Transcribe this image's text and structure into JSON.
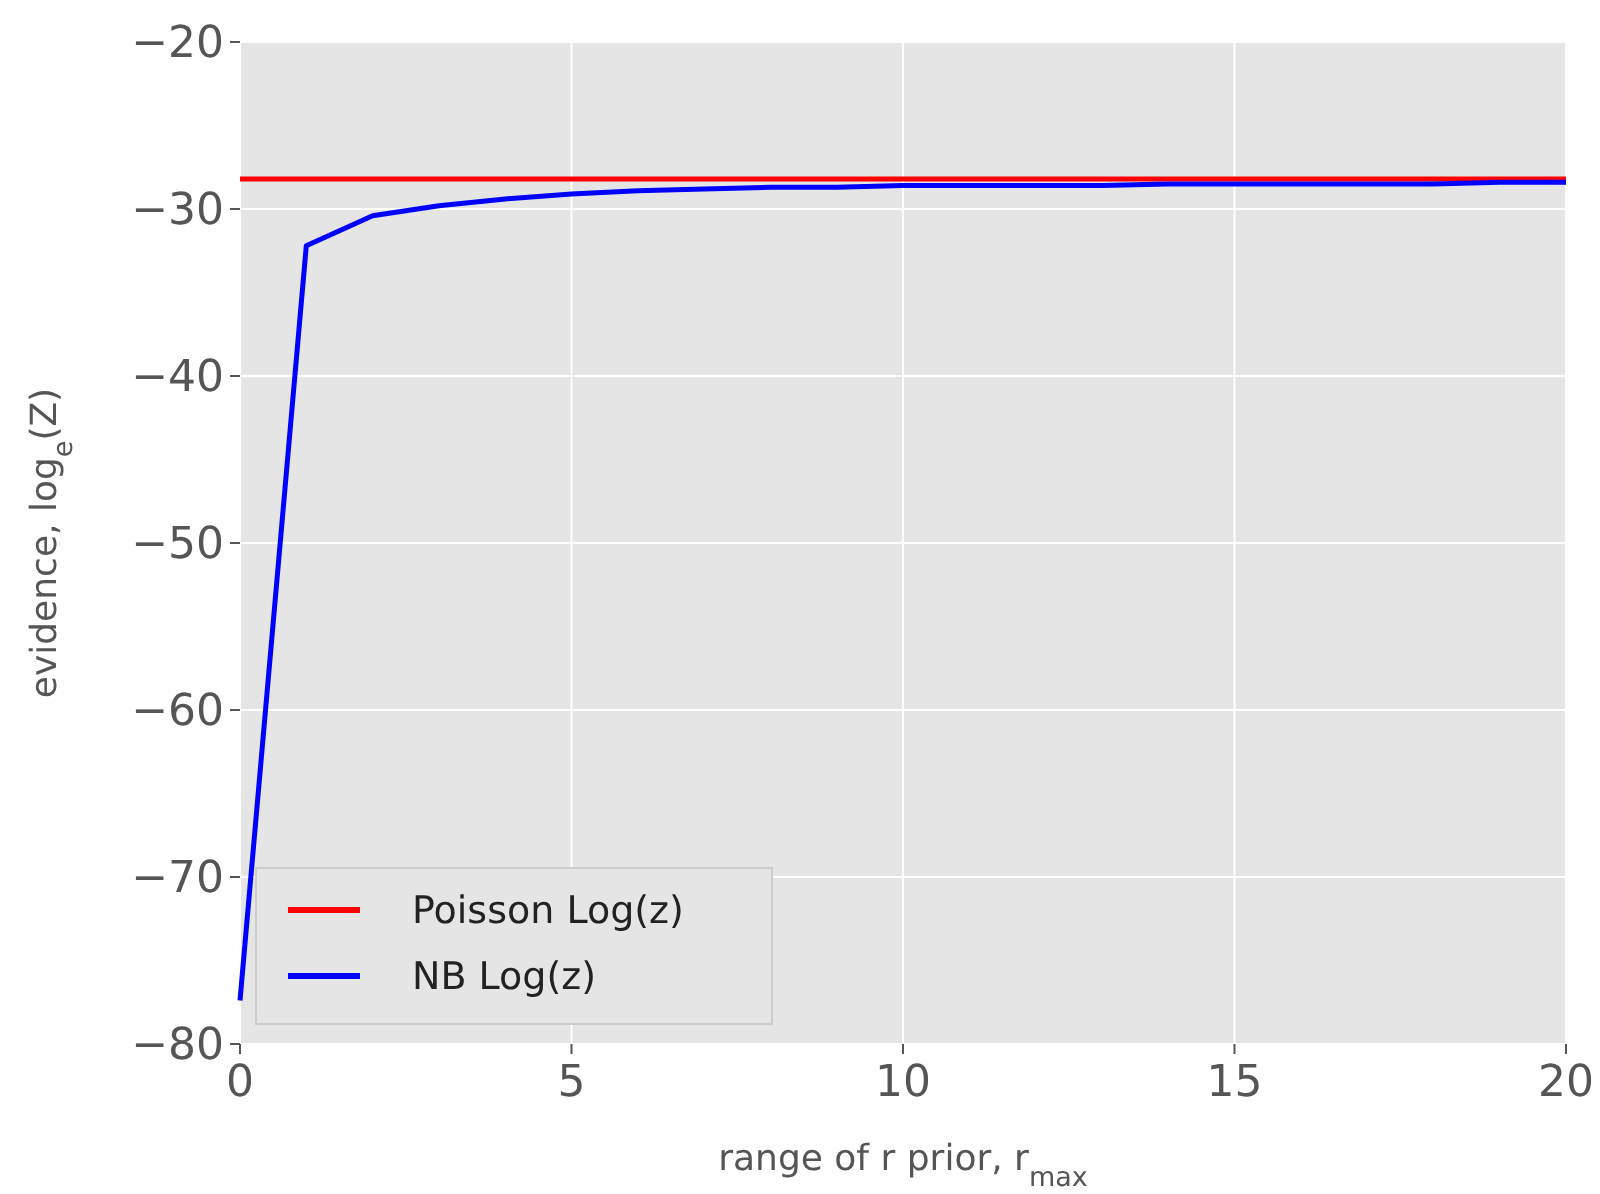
{
  "chart_data": {
    "type": "line",
    "xlabel": "range of r prior, r$_{max}$",
    "ylabel": "evidence, log$_{e}$(Z)",
    "x": [
      0,
      1,
      2,
      3,
      4,
      5,
      6,
      7,
      8,
      9,
      10,
      11,
      12,
      13,
      14,
      15,
      16,
      17,
      18,
      19,
      20
    ],
    "series": [
      {
        "name": "Poisson Log(z)",
        "color": "#ff0000",
        "values": [
          -28.2,
          -28.2,
          -28.2,
          -28.2,
          -28.2,
          -28.2,
          -28.2,
          -28.2,
          -28.2,
          -28.2,
          -28.2,
          -28.2,
          -28.2,
          -28.2,
          -28.2,
          -28.2,
          -28.2,
          -28.2,
          -28.2,
          -28.2,
          -28.2
        ]
      },
      {
        "name": "NB Log(z)",
        "color": "#0000ff",
        "values": [
          -77.4,
          -32.2,
          -30.4,
          -29.8,
          -29.4,
          -29.1,
          -28.9,
          -28.8,
          -28.7,
          -28.7,
          -28.6,
          -28.6,
          -28.6,
          -28.6,
          -28.5,
          -28.5,
          -28.5,
          -28.5,
          -28.5,
          -28.4,
          -28.4
        ]
      }
    ],
    "xlim": [
      0,
      20
    ],
    "xticks": [
      0,
      5,
      10,
      15,
      20
    ],
    "ylim": [
      -80,
      -20
    ],
    "yticks": [
      -80,
      -70,
      -60,
      -50,
      -40,
      -30,
      -20
    ],
    "grid": true,
    "legend": "bottom left",
    "marker": "none",
    "line_style": "solid"
  }
}
